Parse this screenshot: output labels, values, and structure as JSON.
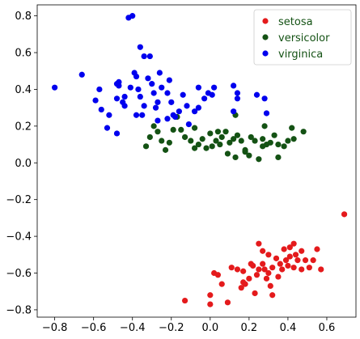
{
  "chart_data": {
    "type": "scatter",
    "title": "",
    "xlabel": "",
    "ylabel": "",
    "xlim": [
      -0.89,
      0.75
    ],
    "ylim": [
      -0.84,
      0.86
    ],
    "xticks": [
      -0.8,
      -0.6,
      -0.4,
      -0.2,
      0.0,
      0.2,
      0.4,
      0.6
    ],
    "xtick_labels": [
      "−0.8",
      "−0.6",
      "−0.4",
      "−0.2",
      "0.0",
      "0.2",
      "0.4",
      "0.6"
    ],
    "yticks": [
      -0.8,
      -0.6,
      -0.4,
      -0.2,
      0.0,
      0.2,
      0.4,
      0.6,
      0.8
    ],
    "ytick_labels": [
      "−0.8",
      "−0.6",
      "−0.4",
      "−0.2",
      "0.0",
      "0.2",
      "0.4",
      "0.6",
      "0.8"
    ],
    "grid": false,
    "legend_position": "top-right",
    "series": [
      {
        "name": "setosa",
        "color": "#e41a1c",
        "points": [
          [
            0.69,
            -0.28
          ],
          [
            0.55,
            -0.47
          ],
          [
            0.47,
            -0.48
          ],
          [
            0.43,
            -0.44
          ],
          [
            0.41,
            -0.46
          ],
          [
            0.38,
            -0.47
          ],
          [
            0.44,
            -0.5
          ],
          [
            0.41,
            -0.51
          ],
          [
            0.45,
            -0.53
          ],
          [
            0.49,
            -0.53
          ],
          [
            0.53,
            -0.53
          ],
          [
            0.57,
            -0.58
          ],
          [
            0.51,
            -0.57
          ],
          [
            0.47,
            -0.58
          ],
          [
            0.43,
            -0.57
          ],
          [
            0.4,
            -0.56
          ],
          [
            0.36,
            -0.55
          ],
          [
            0.34,
            -0.52
          ],
          [
            0.3,
            -0.5
          ],
          [
            0.27,
            -0.48
          ],
          [
            0.25,
            -0.44
          ],
          [
            0.32,
            -0.57
          ],
          [
            0.28,
            -0.58
          ],
          [
            0.25,
            -0.58
          ],
          [
            0.22,
            -0.56
          ],
          [
            0.24,
            -0.61
          ],
          [
            0.27,
            -0.55
          ],
          [
            0.3,
            -0.6
          ],
          [
            0.2,
            -0.63
          ],
          [
            0.17,
            -0.59
          ],
          [
            0.14,
            -0.58
          ],
          [
            0.17,
            -0.65
          ],
          [
            0.16,
            -0.68
          ],
          [
            0.18,
            -0.66
          ],
          [
            0.23,
            -0.71
          ],
          [
            0.29,
            -0.63
          ],
          [
            0.31,
            -0.67
          ],
          [
            0.35,
            -0.62
          ],
          [
            0.32,
            -0.72
          ],
          [
            0.37,
            -0.58
          ],
          [
            0.11,
            -0.57
          ],
          [
            0.04,
            -0.61
          ],
          [
            0.02,
            -0.6
          ],
          [
            0.06,
            -0.66
          ],
          [
            0.0,
            -0.72
          ],
          [
            -0.13,
            -0.75
          ],
          [
            0.09,
            -0.76
          ],
          [
            0.0,
            -0.77
          ],
          [
            0.21,
            -0.55
          ],
          [
            0.39,
            -0.53
          ]
        ]
      },
      {
        "name": "versicolor",
        "color": "#145214",
        "points": [
          [
            0.13,
            0.26
          ],
          [
            0.28,
            0.2
          ],
          [
            0.33,
            0.15
          ],
          [
            0.42,
            0.19
          ],
          [
            0.48,
            0.17
          ],
          [
            0.35,
            0.1
          ],
          [
            0.31,
            0.11
          ],
          [
            0.27,
            0.09
          ],
          [
            0.23,
            0.12
          ],
          [
            0.21,
            0.14
          ],
          [
            0.18,
            0.07
          ],
          [
            0.16,
            0.12
          ],
          [
            0.14,
            0.15
          ],
          [
            0.12,
            0.13
          ],
          [
            0.1,
            0.11
          ],
          [
            0.08,
            0.17
          ],
          [
            0.06,
            0.14
          ],
          [
            0.05,
            0.1
          ],
          [
            0.03,
            0.12
          ],
          [
            0.01,
            0.09
          ],
          [
            -0.02,
            0.08
          ],
          [
            -0.04,
            0.13
          ],
          [
            -0.06,
            0.1
          ],
          [
            -0.08,
            0.08
          ],
          [
            -0.1,
            0.12
          ],
          [
            -0.13,
            0.14
          ],
          [
            -0.15,
            0.18
          ],
          [
            -0.17,
            0.25
          ],
          [
            -0.19,
            0.18
          ],
          [
            -0.21,
            0.11
          ],
          [
            -0.23,
            0.07
          ],
          [
            -0.25,
            0.12
          ],
          [
            -0.27,
            0.17
          ],
          [
            -0.29,
            0.2
          ],
          [
            -0.31,
            0.14
          ],
          [
            -0.33,
            0.09
          ],
          [
            -0.08,
            0.19
          ],
          [
            0.0,
            0.16
          ],
          [
            0.04,
            0.17
          ],
          [
            0.09,
            0.05
          ],
          [
            0.13,
            0.03
          ],
          [
            0.18,
            0.06
          ],
          [
            0.2,
            0.04
          ],
          [
            0.25,
            0.02
          ],
          [
            0.29,
            0.1
          ],
          [
            0.38,
            0.09
          ],
          [
            0.4,
            0.12
          ],
          [
            0.35,
            0.03
          ],
          [
            0.43,
            0.13
          ],
          [
            0.27,
            0.13
          ]
        ]
      },
      {
        "name": "virginica",
        "color": "#0000ee",
        "points": [
          [
            -0.8,
            0.41
          ],
          [
            -0.66,
            0.48
          ],
          [
            -0.57,
            0.4
          ],
          [
            -0.59,
            0.34
          ],
          [
            -0.56,
            0.29
          ],
          [
            -0.52,
            0.26
          ],
          [
            -0.48,
            0.43
          ],
          [
            -0.47,
            0.42
          ],
          [
            -0.48,
            0.35
          ],
          [
            -0.45,
            0.33
          ],
          [
            -0.44,
            0.31
          ],
          [
            -0.44,
            0.36
          ],
          [
            -0.41,
            0.41
          ],
          [
            -0.39,
            0.49
          ],
          [
            -0.38,
            0.47
          ],
          [
            -0.37,
            0.4
          ],
          [
            -0.36,
            0.36
          ],
          [
            -0.34,
            0.31
          ],
          [
            -0.35,
            0.26
          ],
          [
            -0.32,
            0.46
          ],
          [
            -0.3,
            0.43
          ],
          [
            -0.29,
            0.38
          ],
          [
            -0.28,
            0.3
          ],
          [
            -0.27,
            0.23
          ],
          [
            -0.27,
            0.33
          ],
          [
            -0.25,
            0.41
          ],
          [
            -0.22,
            0.38
          ],
          [
            -0.21,
            0.45
          ],
          [
            -0.2,
            0.33
          ],
          [
            -0.19,
            0.26
          ],
          [
            -0.18,
            0.25
          ],
          [
            -0.16,
            0.28
          ],
          [
            -0.14,
            0.37
          ],
          [
            -0.12,
            0.31
          ],
          [
            -0.11,
            0.21
          ],
          [
            -0.08,
            0.28
          ],
          [
            -0.06,
            0.3
          ],
          [
            -0.03,
            0.35
          ],
          [
            -0.01,
            0.38
          ],
          [
            0.02,
            0.41
          ],
          [
            0.12,
            0.42
          ],
          [
            0.14,
            0.35
          ],
          [
            0.28,
            0.35
          ],
          [
            0.29,
            0.27
          ],
          [
            0.12,
            0.28
          ],
          [
            -0.42,
            0.79
          ],
          [
            -0.4,
            0.8
          ],
          [
            -0.36,
            0.63
          ],
          [
            -0.34,
            0.58
          ],
          [
            -0.31,
            0.58
          ],
          [
            -0.47,
            0.44
          ],
          [
            -0.53,
            0.19
          ],
          [
            -0.48,
            0.16
          ],
          [
            -0.38,
            0.26
          ],
          [
            -0.26,
            0.49
          ],
          [
            -0.22,
            0.24
          ],
          [
            -0.06,
            0.41
          ],
          [
            0.14,
            0.38
          ],
          [
            0.01,
            0.37
          ],
          [
            0.24,
            0.37
          ]
        ]
      }
    ]
  }
}
